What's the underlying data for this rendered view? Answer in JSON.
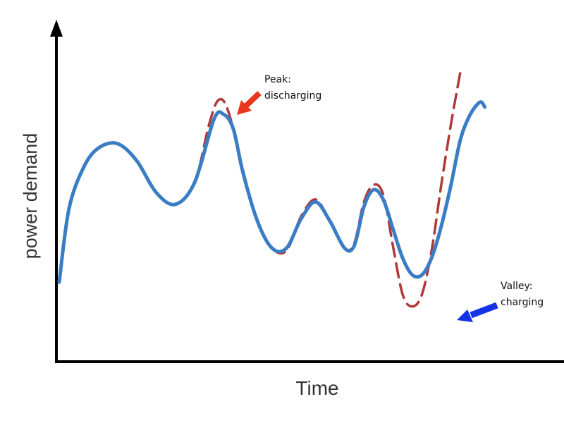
{
  "chart_data": {
    "type": "line",
    "title": "",
    "xlabel": "Time",
    "ylabel": "power demand",
    "xlim": [
      0,
      100
    ],
    "ylim": [
      0,
      100
    ],
    "grid": false,
    "series": [
      {
        "role": "smoothed",
        "color": "#3a7dc4",
        "style": "solid",
        "points": [
          [
            0,
            15
          ],
          [
            2,
            45
          ],
          [
            5,
            62
          ],
          [
            8,
            70
          ],
          [
            12,
            72
          ],
          [
            16,
            65
          ],
          [
            20,
            52
          ],
          [
            24,
            47
          ],
          [
            28,
            56
          ],
          [
            32,
            82
          ],
          [
            34,
            84
          ],
          [
            36,
            78
          ],
          [
            38,
            60
          ],
          [
            41,
            40
          ],
          [
            44,
            29
          ],
          [
            47,
            29
          ],
          [
            50,
            41
          ],
          [
            53,
            48
          ],
          [
            56,
            40
          ],
          [
            59,
            29
          ],
          [
            61,
            30
          ],
          [
            63,
            46
          ],
          [
            65,
            53
          ],
          [
            67,
            49
          ],
          [
            69,
            37
          ],
          [
            71,
            25
          ],
          [
            73,
            18
          ],
          [
            75,
            18
          ],
          [
            77,
            25
          ],
          [
            79,
            38
          ],
          [
            81,
            55
          ],
          [
            83,
            74
          ],
          [
            85,
            84
          ],
          [
            87,
            89
          ],
          [
            88,
            87
          ]
        ]
      },
      {
        "role": "original",
        "color": "#b03a3a",
        "style": "dashed",
        "points": [
          [
            0,
            15
          ],
          [
            2,
            45
          ],
          [
            5,
            62
          ],
          [
            8,
            70
          ],
          [
            12,
            72
          ],
          [
            16,
            65
          ],
          [
            20,
            52
          ],
          [
            24,
            47
          ],
          [
            28,
            56
          ],
          [
            31,
            80
          ],
          [
            33,
            90
          ],
          [
            35,
            85
          ],
          [
            38,
            61
          ],
          [
            41,
            40
          ],
          [
            44,
            29
          ],
          [
            47,
            28
          ],
          [
            50,
            42
          ],
          [
            53,
            49
          ],
          [
            56,
            40
          ],
          [
            59,
            29
          ],
          [
            61,
            31
          ],
          [
            63,
            48
          ],
          [
            65,
            55
          ],
          [
            67,
            51
          ],
          [
            69,
            30
          ],
          [
            71,
            10
          ],
          [
            73,
            5
          ],
          [
            75,
            10
          ],
          [
            77,
            28
          ],
          [
            79,
            55
          ],
          [
            81,
            80
          ],
          [
            83,
            102
          ]
        ]
      }
    ],
    "annotations": [
      {
        "id": "peak",
        "lines": [
          "Peak:",
          "discharging"
        ],
        "arrow_color": "#e8361b",
        "target": [
          33,
          88
        ]
      },
      {
        "id": "valley",
        "lines": [
          "Valley:",
          "charging"
        ],
        "arrow_color": "#1532e6",
        "target": [
          74,
          16
        ]
      }
    ]
  }
}
